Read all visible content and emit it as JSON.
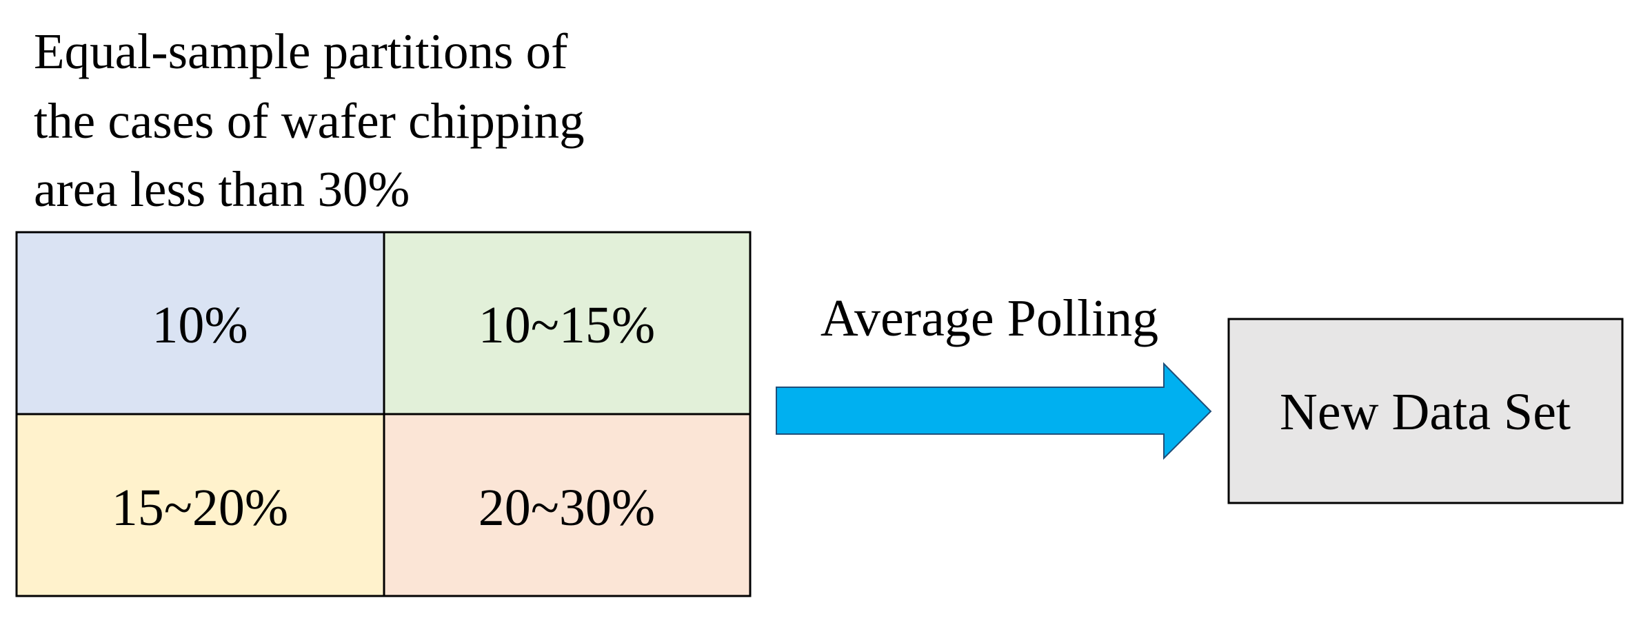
{
  "title": {
    "lines": [
      "Equal-sample partitions of",
      "the cases of wafer chipping",
      "area less than 30%"
    ]
  },
  "partitions": [
    {
      "label": "10%"
    },
    {
      "label": "10~15%"
    },
    {
      "label": "15~20%"
    },
    {
      "label": "20~30%"
    }
  ],
  "arrow": {
    "label": "Average Polling"
  },
  "output": {
    "label": "New Data Set"
  }
}
